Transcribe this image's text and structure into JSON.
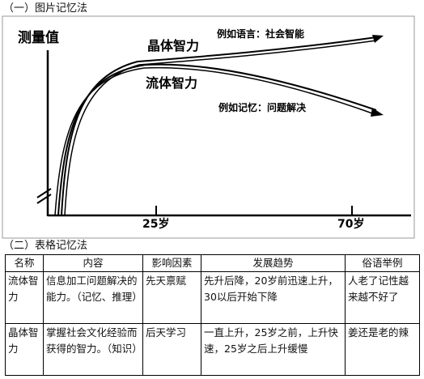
{
  "section1": {
    "title": "（一）图片记忆法"
  },
  "graph": {
    "y_axis_label": "测量值",
    "curves": [
      {
        "name": "晶体智力",
        "example": "例如语言：社会智能"
      },
      {
        "name": "流体智力",
        "example": "例如记忆：问题解决"
      }
    ],
    "x_ticks": [
      "25岁",
      "70岁"
    ]
  },
  "section2": {
    "title": "（二）表格记忆法"
  },
  "table": {
    "headers": [
      "名称",
      "内容",
      "影响因素",
      "发展趋势",
      "俗语举例"
    ],
    "rows": [
      {
        "name": "流体智力",
        "content": "信息加工问题解决的能力。（记忆、推理）",
        "factor": "先天禀赋",
        "trend": "先升后降，20岁前迅速上升，30以后开始下降",
        "saying": "人老了记性越来越不好了"
      },
      {
        "name": "晶体智力",
        "content": "掌握社会文化经验而获得的智力。（知识）",
        "factor": "后天学习",
        "trend": "一直上升，25岁之前，上升快速，25岁之后上升缓慢",
        "saying": "姜还是老的辣"
      }
    ]
  }
}
